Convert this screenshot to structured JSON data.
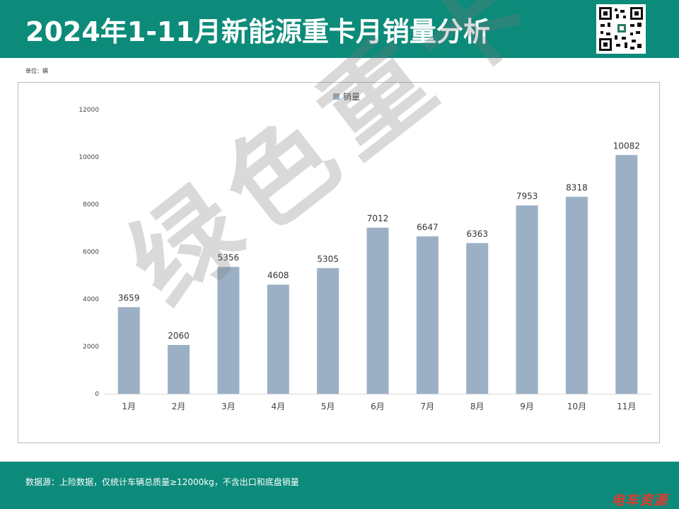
{
  "header": {
    "title": "2024年1-11月新能源重卡月销量分析"
  },
  "unit_label": "单位：辆",
  "footer": {
    "source": "数据源：上险数据，仅统计车辆总质量≥12000kg，不含出口和底盘销量",
    "brand": "电车资源"
  },
  "watermark": "绿色重卡",
  "colors": {
    "header": "#0d8b7a",
    "bar": "#9cb0c5",
    "brand": "#e03b2e"
  },
  "chart_data": {
    "type": "bar",
    "categories": [
      "1月",
      "2月",
      "3月",
      "4月",
      "5月",
      "6月",
      "7月",
      "8月",
      "9月",
      "10月",
      "11月"
    ],
    "series": [
      {
        "name": "销量",
        "values": [
          3659,
          2060,
          5356,
          4608,
          5305,
          7012,
          6647,
          6363,
          7953,
          8318,
          10082
        ]
      }
    ],
    "yticks": [
      0,
      2000,
      4000,
      6000,
      8000,
      10000,
      12000
    ],
    "ylim": [
      0,
      12000
    ],
    "legend_position": "top-center",
    "data_labels": true,
    "grid": false
  }
}
